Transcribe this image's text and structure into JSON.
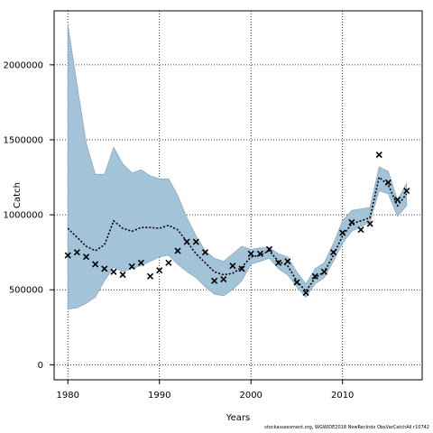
{
  "chart_data": {
    "type": "line",
    "xlabel": "Years",
    "ylabel": "Catch",
    "xlim": [
      1978.5,
      2018.7
    ],
    "ylim": [
      -100000,
      2360000
    ],
    "x_ticks": [
      1980,
      1990,
      2000,
      2010
    ],
    "y_ticks": [
      0,
      500000,
      1000000,
      1500000,
      2000000
    ],
    "grid": true,
    "colors": {
      "band": "#a3c4d8",
      "band_edge": "#7f9eb3",
      "line": "#000000",
      "marker": "#000000"
    },
    "years": [
      1980,
      1981,
      1982,
      1983,
      1984,
      1985,
      1986,
      1987,
      1988,
      1989,
      1990,
      1991,
      1992,
      1993,
      1994,
      1995,
      1996,
      1997,
      1998,
      1999,
      2000,
      2001,
      2002,
      2003,
      2004,
      2005,
      2006,
      2007,
      2008,
      2009,
      2010,
      2011,
      2012,
      2013,
      2014,
      2015,
      2016,
      2017
    ],
    "estimate": [
      910000,
      850000,
      790000,
      760000,
      800000,
      960000,
      910000,
      890000,
      915000,
      915000,
      910000,
      930000,
      900000,
      820000,
      740000,
      680000,
      620000,
      600000,
      610000,
      650000,
      720000,
      730000,
      760000,
      690000,
      660000,
      560000,
      490000,
      580000,
      620000,
      730000,
      860000,
      940000,
      960000,
      980000,
      1250000,
      1200000,
      1060000,
      1140000
    ],
    "upper": [
      2270000,
      1870000,
      1480000,
      1270000,
      1270000,
      1450000,
      1340000,
      1280000,
      1300000,
      1260000,
      1240000,
      1240000,
      1130000,
      980000,
      860000,
      760000,
      710000,
      690000,
      740000,
      790000,
      770000,
      780000,
      780000,
      740000,
      720000,
      620000,
      540000,
      640000,
      680000,
      810000,
      960000,
      1030000,
      1040000,
      1050000,
      1320000,
      1290000,
      1100000,
      1210000
    ],
    "lower": [
      370000,
      380000,
      410000,
      450000,
      560000,
      650000,
      620000,
      640000,
      660000,
      690000,
      720000,
      730000,
      670000,
      620000,
      580000,
      520000,
      470000,
      460000,
      500000,
      560000,
      670000,
      690000,
      710000,
      640000,
      600000,
      520000,
      450000,
      540000,
      580000,
      690000,
      810000,
      890000,
      920000,
      950000,
      1160000,
      1140000,
      990000,
      1060000
    ],
    "observed": [
      730000,
      750000,
      720000,
      670000,
      640000,
      620000,
      600000,
      655000,
      680000,
      590000,
      630000,
      680000,
      760000,
      820000,
      820000,
      750000,
      560000,
      570000,
      660000,
      640000,
      740000,
      740000,
      770000,
      680000,
      690000,
      550000,
      480000,
      590000,
      620000,
      750000,
      880000,
      950000,
      900000,
      940000,
      1400000,
      1215000,
      1100000,
      1160000
    ]
  },
  "footnote": "stockassessment.org,  WGWIDE2018  NewRecIndx  ObsVarCatchAll  r10742"
}
